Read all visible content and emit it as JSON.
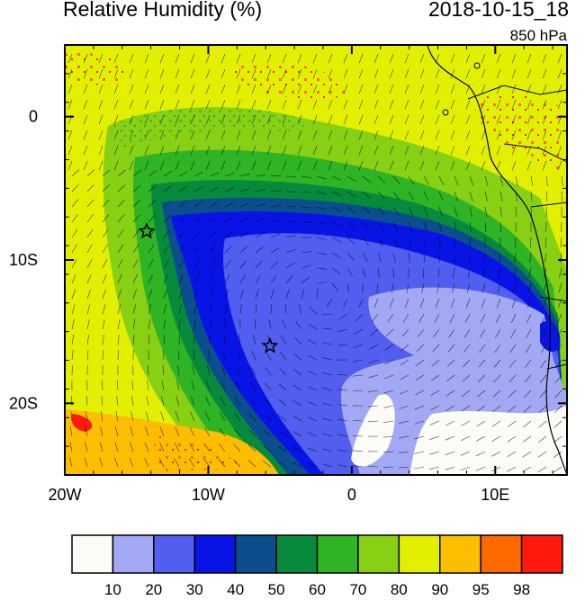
{
  "title": "Relative Humidity (%)",
  "valid_time": "2018-10-15_18",
  "level": "850 hPa",
  "map": {
    "lon_range": [
      -20,
      15
    ],
    "lat_range": [
      -25,
      5
    ],
    "x_ticks": [
      {
        "lon": -20,
        "label": "20W"
      },
      {
        "lon": -10,
        "label": "10W"
      },
      {
        "lon": 0,
        "label": "0"
      },
      {
        "lon": 10,
        "label": "10E"
      }
    ],
    "y_ticks": [
      {
        "lat": 0,
        "label": "0"
      },
      {
        "lat": -10,
        "label": "10S"
      },
      {
        "lat": -20,
        "label": "20S"
      }
    ],
    "markers": [
      {
        "name": "star-marker",
        "lon": -14.3,
        "lat": -8.0
      },
      {
        "name": "star-marker",
        "lon": -5.7,
        "lat": -16.0
      }
    ]
  },
  "colorbar": {
    "colors": [
      "#fcfcf7",
      "#a3a8f5",
      "#525ef0",
      "#0814e6",
      "#0a4e8e",
      "#078a3c",
      "#2eb424",
      "#88d014",
      "#e2f000",
      "#fdbe00",
      "#ff6a00",
      "#ff1a10"
    ],
    "labels": [
      "10",
      "20",
      "30",
      "40",
      "50",
      "60",
      "70",
      "80",
      "90",
      "95",
      "98"
    ]
  }
}
